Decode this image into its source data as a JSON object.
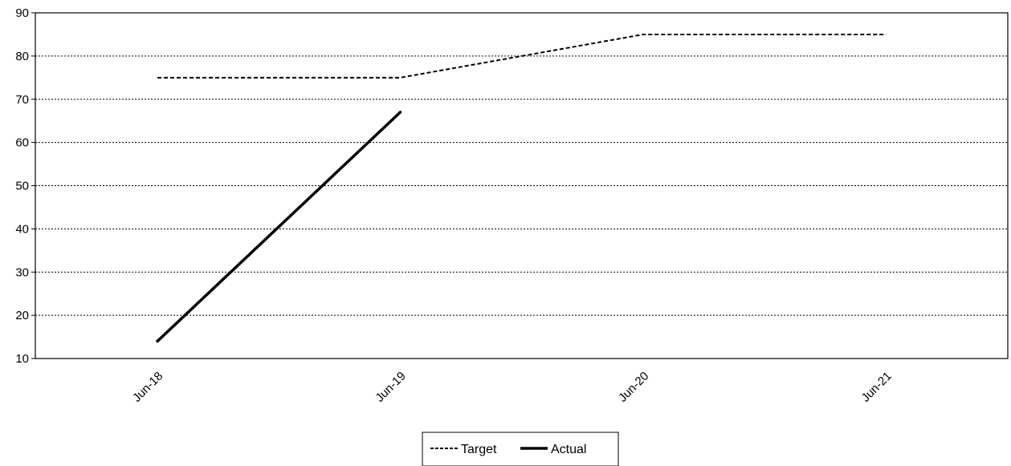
{
  "chart_data": {
    "type": "line",
    "categories": [
      "Jun-18",
      "Jun-19",
      "Jun-20",
      "Jun-21"
    ],
    "series": [
      {
        "name": "Target",
        "values": [
          75,
          75,
          85,
          85
        ],
        "style": "dashed",
        "color": "#000000"
      },
      {
        "name": "Actual",
        "values": [
          14,
          67,
          null,
          null
        ],
        "style": "solid",
        "color": "#000000"
      }
    ],
    "ylim": [
      10,
      90
    ],
    "yticks": [
      10,
      20,
      30,
      40,
      50,
      60,
      70,
      80,
      90
    ],
    "grid": "horizontal-dotted",
    "legend_position": "bottom-center",
    "title": "",
    "xlabel": "",
    "ylabel": ""
  }
}
